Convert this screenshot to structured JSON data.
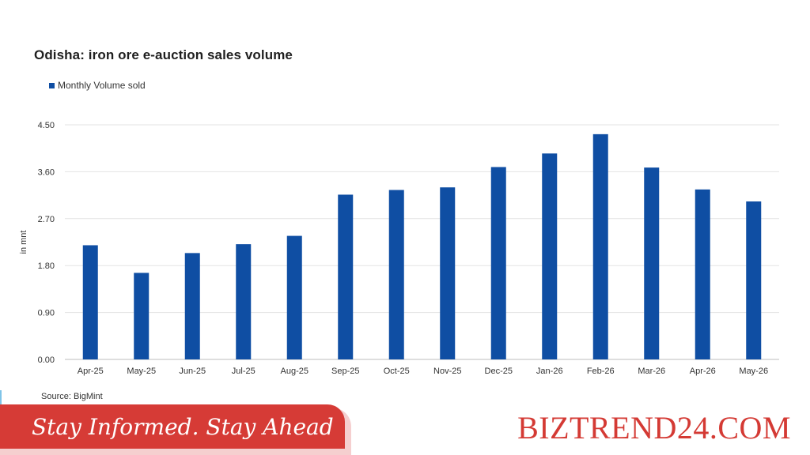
{
  "chart_data": {
    "type": "bar",
    "title": "Odisha: iron ore e-auction sales volume",
    "ylabel": "in mnt",
    "xlabel": "",
    "categories": [
      "Apr-25",
      "May-25",
      "Jun-25",
      "Jul-25",
      "Aug-25",
      "Sep-25",
      "Oct-25",
      "Nov-25",
      "Dec-25",
      "Jan-26",
      "Feb-26",
      "Mar-26",
      "Apr-26",
      "May-26"
    ],
    "series": [
      {
        "name": "Monthly Volume sold",
        "color": "#0f4ea3",
        "values": [
          2.19,
          1.66,
          2.04,
          2.21,
          2.37,
          3.16,
          3.25,
          3.3,
          3.69,
          3.95,
          4.32,
          3.68,
          3.26,
          3.03
        ]
      }
    ],
    "ylim": [
      0,
      4.5
    ],
    "yticks": [
      "0.00",
      "0.90",
      "1.80",
      "2.70",
      "3.60",
      "4.50"
    ],
    "grid": true,
    "legend_position": "top-left",
    "source": "Source: BigMint"
  },
  "footer": {
    "tagline": "Stay Informed. Stay Ahead",
    "brand": "BIZTREND24.COM"
  }
}
